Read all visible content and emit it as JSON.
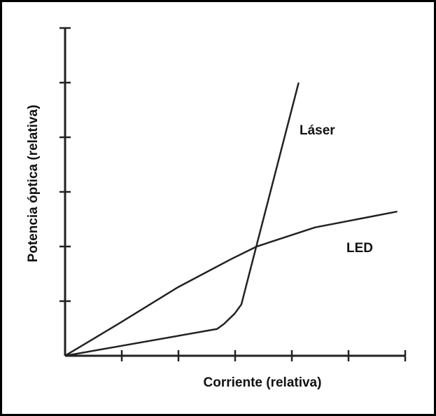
{
  "chart_data": {
    "type": "line",
    "xlabel": "Corriente (relativa)",
    "ylabel": "Potencia óptica (relativa)",
    "xlim": [
      0,
      6
    ],
    "ylim": [
      0,
      6
    ],
    "xticks": [
      1,
      2,
      3,
      4,
      5,
      6
    ],
    "yticks": [
      1,
      2,
      3,
      4,
      5,
      6
    ],
    "color": "#222222",
    "series": [
      {
        "name": "Láser",
        "x": [
          0,
          2.68,
          2.8,
          2.99,
          3.11,
          3.38,
          4.12
        ],
        "values": [
          0,
          0.49,
          0.58,
          0.77,
          0.94,
          2.03,
          5.0
        ]
      },
      {
        "name": "LED",
        "x": [
          0,
          0.95,
          2.0,
          2.93,
          3.38,
          4.41,
          5.86
        ],
        "values": [
          0,
          0.59,
          1.26,
          1.77,
          2.0,
          2.35,
          2.64
        ]
      }
    ]
  }
}
